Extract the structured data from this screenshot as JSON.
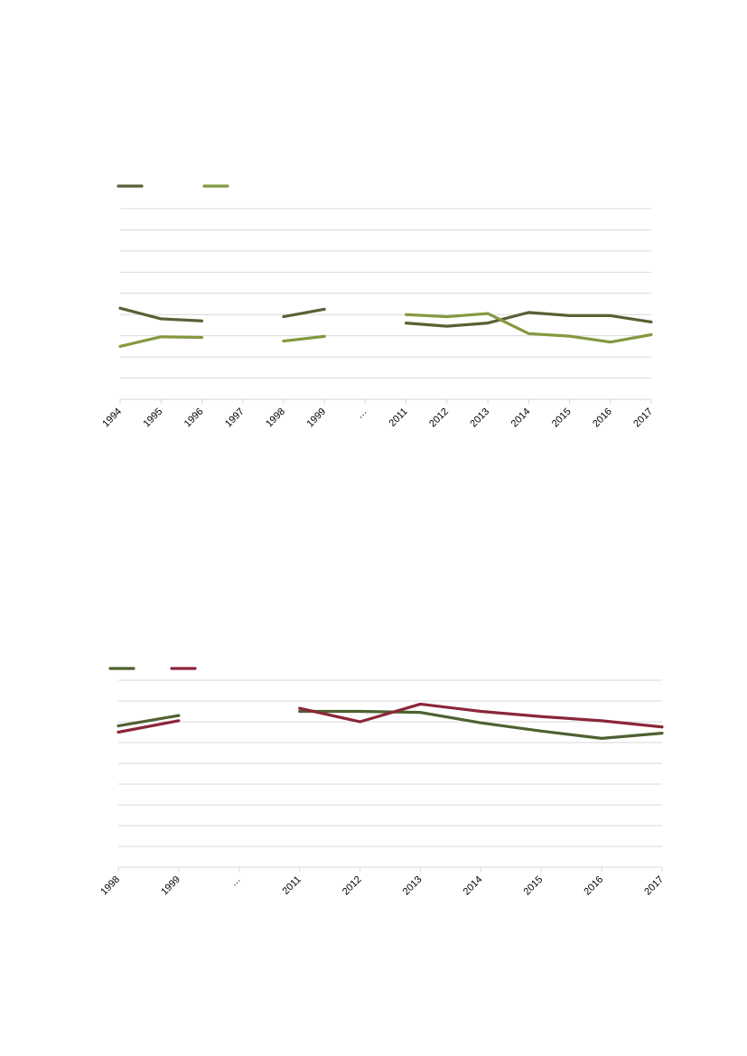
{
  "chart_data": [
    {
      "type": "line",
      "categories": [
        "1994",
        "1995",
        "1996",
        "1997",
        "1998",
        "1999",
        "…",
        "2011",
        "2012",
        "2013",
        "2014",
        "2015",
        "2016",
        "2017"
      ],
      "ylim": [
        0,
        9
      ],
      "grid": true,
      "legend": "top-left",
      "series": [
        {
          "color": "#576134",
          "values": [
            4.3,
            3.8,
            3.7,
            null,
            3.9,
            4.25,
            null,
            3.6,
            3.45,
            3.6,
            4.1,
            3.95,
            3.95,
            3.65
          ]
        },
        {
          "color": "#84993f",
          "values": [
            2.5,
            2.95,
            2.92,
            null,
            2.75,
            2.97,
            null,
            4.0,
            3.9,
            4.05,
            3.1,
            2.98,
            2.7,
            3.05
          ]
        }
      ]
    },
    {
      "type": "line",
      "categories": [
        "1998",
        "1999",
        "…",
        "2011",
        "2012",
        "2013",
        "2014",
        "2015",
        "2016",
        "2017"
      ],
      "ylim": [
        0,
        9
      ],
      "grid": true,
      "legend": "top-left",
      "series": [
        {
          "color": "#4f6131",
          "values": [
            6.8,
            7.3,
            null,
            7.5,
            7.5,
            7.45,
            6.95,
            6.55,
            6.2,
            6.45
          ]
        },
        {
          "color": "#8b2639",
          "values": [
            6.5,
            7.05,
            null,
            7.65,
            7.0,
            7.85,
            7.5,
            7.25,
            7.05,
            6.75
          ]
        }
      ]
    }
  ]
}
